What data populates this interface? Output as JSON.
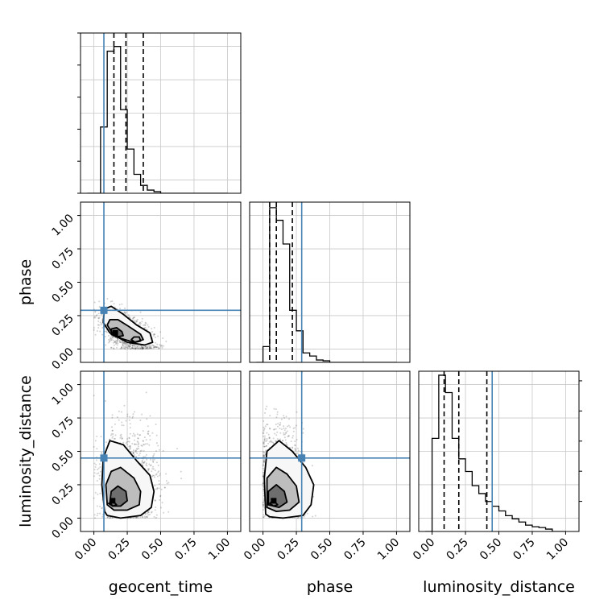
{
  "chart_data": {
    "type": "corner",
    "parameters": [
      "geocent_time",
      "phase",
      "luminosity_distance"
    ],
    "axis_range": [
      -0.1,
      1.1
    ],
    "tick_values": [
      0.0,
      0.25,
      0.5,
      0.75,
      1.0
    ],
    "tick_labels": [
      "0.00",
      "0.25",
      "0.50",
      "0.75",
      "1.00"
    ],
    "grid": true,
    "colors": {
      "truth": "#4682b4",
      "hist": "#000000",
      "grid": "#c8c8c8",
      "frame": "#000000"
    },
    "truths": {
      "geocent_time": 0.075,
      "phase": 0.29,
      "luminosity_distance": 0.45
    },
    "diagonal": [
      {
        "parameter": "geocent_time",
        "bin_width": 0.05,
        "bin_edges_start": 0.0,
        "heights": [
          0.0,
          0.42,
          0.9,
          0.93,
          0.53,
          0.28,
          0.12,
          0.05,
          0.02,
          0.01,
          0.0,
          0.0,
          0.0,
          0.0,
          0.0,
          0.0,
          0.0,
          0.0,
          0.0,
          0.0
        ],
        "quantiles": [
          0.15,
          0.24,
          0.37
        ]
      },
      {
        "parameter": "phase",
        "bin_width": 0.05,
        "bin_edges_start": 0.0,
        "heights": [
          0.1,
          0.98,
          0.9,
          0.75,
          0.33,
          0.2,
          0.06,
          0.04,
          0.015,
          0.01,
          0.0,
          0.0,
          0.0,
          0.0,
          0.0,
          0.0,
          0.0,
          0.0,
          0.0,
          0.0
        ],
        "quantiles": [
          0.05,
          0.1,
          0.22
        ]
      },
      {
        "parameter": "luminosity_distance",
        "bin_width": 0.05,
        "bin_edges_start": 0.0,
        "heights": [
          0.59,
          0.99,
          0.88,
          0.59,
          0.46,
          0.38,
          0.29,
          0.24,
          0.19,
          0.16,
          0.13,
          0.1,
          0.08,
          0.06,
          0.04,
          0.03,
          0.025,
          0.015,
          0.0,
          0.0
        ],
        "quantiles": [
          0.09,
          0.2,
          0.41
        ]
      }
    ],
    "pairs": [
      {
        "x": "geocent_time",
        "y": "phase",
        "scatter_center": [
          0.25,
          0.12
        ],
        "scatter_spread": [
          0.1,
          0.08
        ],
        "scatter_corr": -0.55,
        "density_peak": [
          0.16,
          0.12
        ],
        "contours": [
          [
            [
              0.08,
              0.3
            ],
            [
              0.13,
              0.32
            ],
            [
              0.22,
              0.26
            ],
            [
              0.32,
              0.18
            ],
            [
              0.42,
              0.12
            ],
            [
              0.44,
              0.05
            ],
            [
              0.38,
              0.03
            ],
            [
              0.25,
              0.05
            ],
            [
              0.12,
              0.12
            ],
            [
              0.07,
              0.2
            ]
          ],
          [
            [
              0.12,
              0.22
            ],
            [
              0.18,
              0.22
            ],
            [
              0.26,
              0.17
            ],
            [
              0.35,
              0.11
            ],
            [
              0.37,
              0.07
            ],
            [
              0.3,
              0.05
            ],
            [
              0.2,
              0.08
            ],
            [
              0.13,
              0.13
            ],
            [
              0.1,
              0.18
            ]
          ],
          [
            [
              0.13,
              0.15
            ],
            [
              0.17,
              0.16
            ],
            [
              0.21,
              0.13
            ],
            [
              0.22,
              0.1
            ],
            [
              0.17,
              0.09
            ],
            [
              0.13,
              0.11
            ]
          ],
          [
            [
              0.3,
              0.09
            ],
            [
              0.34,
              0.09
            ],
            [
              0.35,
              0.06
            ],
            [
              0.31,
              0.05
            ],
            [
              0.28,
              0.07
            ]
          ]
        ]
      },
      {
        "x": "geocent_time",
        "y": "luminosity_distance",
        "scatter_center": [
          0.26,
          0.28
        ],
        "scatter_spread": [
          0.11,
          0.2
        ],
        "scatter_corr": 0.0,
        "density_peak": [
          0.14,
          0.13
        ],
        "contours": [
          [
            [
              0.08,
              0.05
            ],
            [
              0.06,
              0.25
            ],
            [
              0.07,
              0.45
            ],
            [
              0.12,
              0.58
            ],
            [
              0.22,
              0.55
            ],
            [
              0.32,
              0.43
            ],
            [
              0.42,
              0.32
            ],
            [
              0.45,
              0.2
            ],
            [
              0.43,
              0.08
            ],
            [
              0.35,
              0.02
            ],
            [
              0.2,
              0.0
            ],
            [
              0.1,
              0.02
            ]
          ],
          [
            [
              0.1,
              0.1
            ],
            [
              0.09,
              0.25
            ],
            [
              0.13,
              0.35
            ],
            [
              0.2,
              0.38
            ],
            [
              0.3,
              0.3
            ],
            [
              0.35,
              0.2
            ],
            [
              0.34,
              0.1
            ],
            [
              0.25,
              0.06
            ],
            [
              0.15,
              0.06
            ]
          ],
          [
            [
              0.12,
              0.12
            ],
            [
              0.13,
              0.2
            ],
            [
              0.18,
              0.24
            ],
            [
              0.24,
              0.2
            ],
            [
              0.25,
              0.13
            ],
            [
              0.2,
              0.09
            ],
            [
              0.14,
              0.09
            ]
          ],
          [
            [
              0.11,
              0.11
            ],
            [
              0.15,
              0.12
            ],
            [
              0.17,
              0.1
            ],
            [
              0.14,
              0.09
            ]
          ]
        ]
      },
      {
        "x": "phase",
        "y": "luminosity_distance",
        "scatter_center": [
          0.12,
          0.3
        ],
        "scatter_spread": [
          0.09,
          0.2
        ],
        "scatter_corr": -0.15,
        "density_peak": [
          0.08,
          0.13
        ],
        "contours": [
          [
            [
              0.02,
              0.03
            ],
            [
              0.01,
              0.3
            ],
            [
              0.03,
              0.5
            ],
            [
              0.12,
              0.58
            ],
            [
              0.22,
              0.5
            ],
            [
              0.32,
              0.38
            ],
            [
              0.38,
              0.25
            ],
            [
              0.36,
              0.1
            ],
            [
              0.3,
              0.02
            ],
            [
              0.15,
              0.0
            ],
            [
              0.05,
              0.01
            ]
          ],
          [
            [
              0.03,
              0.08
            ],
            [
              0.03,
              0.3
            ],
            [
              0.1,
              0.38
            ],
            [
              0.18,
              0.33
            ],
            [
              0.25,
              0.24
            ],
            [
              0.27,
              0.12
            ],
            [
              0.2,
              0.06
            ],
            [
              0.1,
              0.05
            ]
          ],
          [
            [
              0.04,
              0.1
            ],
            [
              0.04,
              0.2
            ],
            [
              0.1,
              0.25
            ],
            [
              0.16,
              0.2
            ],
            [
              0.18,
              0.12
            ],
            [
              0.12,
              0.08
            ]
          ],
          [
            [
              0.05,
              0.11
            ],
            [
              0.08,
              0.13
            ],
            [
              0.11,
              0.1
            ],
            [
              0.08,
              0.09
            ]
          ]
        ]
      }
    ]
  }
}
